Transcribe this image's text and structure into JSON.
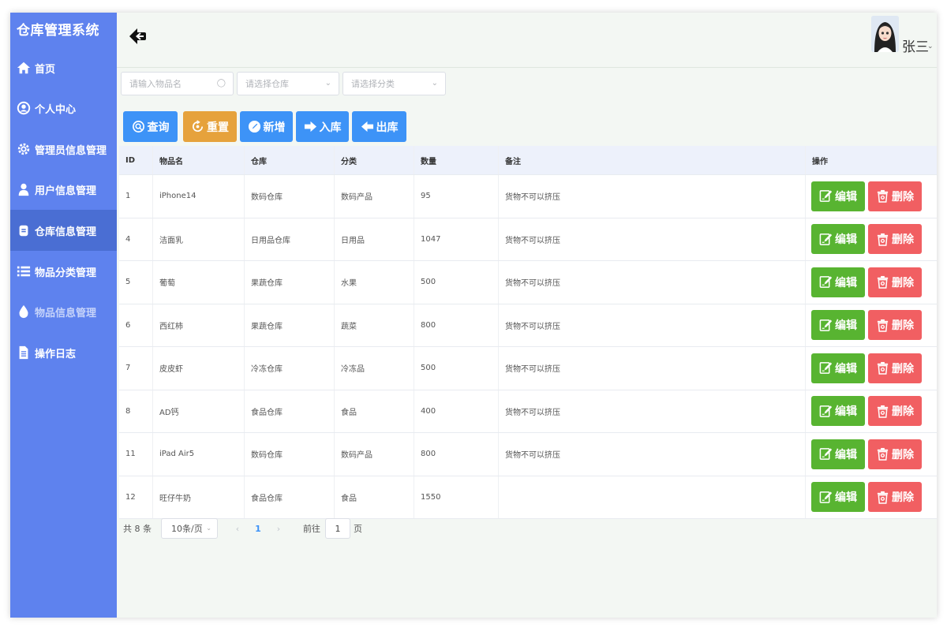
{
  "app": {
    "title": "仓库管理系统"
  },
  "sidebar": {
    "items": [
      {
        "label": "首页",
        "icon": "home-icon"
      },
      {
        "label": "个人中心",
        "icon": "user-circle-icon"
      },
      {
        "label": "管理员信息管理",
        "icon": "gear-icon"
      },
      {
        "label": "用户信息管理",
        "icon": "user-icon"
      },
      {
        "label": "仓库信息管理",
        "icon": "warehouse-icon",
        "active": true
      },
      {
        "label": "物品分类管理",
        "icon": "list-icon"
      },
      {
        "label": "物品信息管理",
        "icon": "drop-icon"
      },
      {
        "label": "操作日志",
        "icon": "document-icon"
      }
    ]
  },
  "header": {
    "username": "张三"
  },
  "filters": {
    "name_placeholder": "请输入物品名",
    "warehouse_placeholder": "请选择仓库",
    "category_placeholder": "请选择分类"
  },
  "toolbar": {
    "query": "查询",
    "reset": "重置",
    "add": "新增",
    "stock_in": "入库",
    "stock_out": "出库"
  },
  "table": {
    "columns": [
      "ID",
      "物品名",
      "仓库",
      "分类",
      "数量",
      "备注",
      "操作"
    ],
    "rows": [
      {
        "id": "1",
        "name": "iPhone14",
        "warehouse": "数码仓库",
        "category": "数码产品",
        "qty": "95",
        "note": "货物不可以挤压"
      },
      {
        "id": "4",
        "name": "洁面乳",
        "warehouse": "日用品仓库",
        "category": "日用品",
        "qty": "1047",
        "note": "货物不可以挤压"
      },
      {
        "id": "5",
        "name": "葡萄",
        "warehouse": "果蔬仓库",
        "category": "水果",
        "qty": "500",
        "note": "货物不可以挤压"
      },
      {
        "id": "6",
        "name": "西红柿",
        "warehouse": "果蔬仓库",
        "category": "蔬菜",
        "qty": "800",
        "note": "货物不可以挤压"
      },
      {
        "id": "7",
        "name": "皮皮虾",
        "warehouse": "冷冻仓库",
        "category": "冷冻品",
        "qty": "500",
        "note": "货物不可以挤压"
      },
      {
        "id": "8",
        "name": "AD钙",
        "warehouse": "食品仓库",
        "category": "食品",
        "qty": "400",
        "note": "货物不可以挤压"
      },
      {
        "id": "11",
        "name": "iPad Air5",
        "warehouse": "数码仓库",
        "category": "数码产品",
        "qty": "800",
        "note": "货物不可以挤压"
      },
      {
        "id": "12",
        "name": "旺仔牛奶",
        "warehouse": "食品仓库",
        "category": "食品",
        "qty": "1550",
        "note": ""
      }
    ],
    "edit_label": "编辑",
    "delete_label": "删除"
  },
  "pagination": {
    "total": "共 8 条",
    "page_size": "10条/页",
    "prev": "‹",
    "next": "›",
    "current_page": "1",
    "goto_prefix": "前往",
    "goto_value": "1",
    "goto_suffix": "页"
  },
  "colors": {
    "sidebar": "#5e82ee",
    "sidebar_active": "#4a6ed3",
    "primary": "#3d93f7",
    "warning": "#e6a23c",
    "success": "#58b431",
    "danger": "#f15f62"
  }
}
